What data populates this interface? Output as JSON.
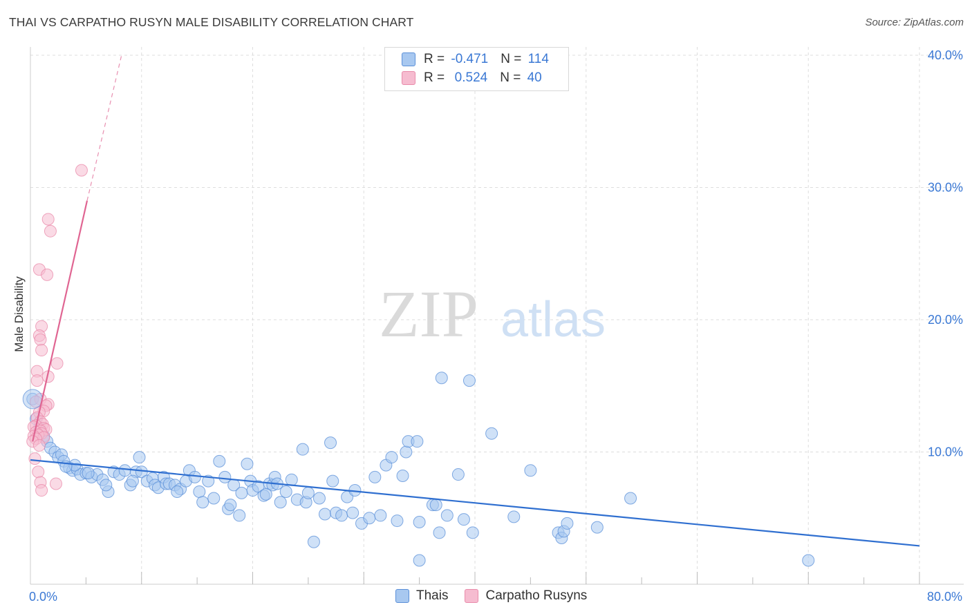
{
  "title": "THAI VS CARPATHO RUSYN MALE DISABILITY CORRELATION CHART",
  "source": "Source: ZipAtlas.com",
  "watermark": {
    "zip": "ZIP",
    "atlas": "atlas"
  },
  "legend": {
    "rows": [
      {
        "r_label": "R = ",
        "r_value": "-0.471",
        "n_label": "N = ",
        "n_value": "114",
        "color": "#a8c8f0",
        "border": "#5a8fd8"
      },
      {
        "r_label": "R = ",
        "r_value": " 0.524",
        "n_label": "N = ",
        "n_value": "40",
        "color": "#f6bcd0",
        "border": "#e98aaa"
      }
    ]
  },
  "bottom_legend": [
    {
      "label": "Thais",
      "color": "#a8c8f0",
      "border": "#5a8fd8"
    },
    {
      "label": "Carpatho Rusyns",
      "color": "#f6bcd0",
      "border": "#e98aaa"
    }
  ],
  "chart_data": {
    "type": "scatter",
    "xlabel": "",
    "ylabel": "Male Disability",
    "xlim": [
      0,
      80
    ],
    "ylim": [
      0,
      40
    ],
    "x_tick_labels": [
      {
        "value": 0,
        "label": "0.0%"
      },
      {
        "value": 80,
        "label": "80.0%"
      }
    ],
    "y_tick_labels": [
      {
        "value": 10,
        "label": "10.0%"
      },
      {
        "value": 20,
        "label": "20.0%"
      },
      {
        "value": 30,
        "label": "30.0%"
      },
      {
        "value": 40,
        "label": "40.0%"
      }
    ],
    "grid": true,
    "series": [
      {
        "name": "Thais",
        "color": "#5a8fd8",
        "fill": "#a8c8f0",
        "trend": {
          "x0": 0,
          "y0": 9.4,
          "x1": 80,
          "y1": 2.9
        },
        "points": [
          [
            0.2,
            14.0
          ],
          [
            0.5,
            12.5
          ],
          [
            0.8,
            11.8
          ],
          [
            1.2,
            11.2
          ],
          [
            1.5,
            10.8
          ],
          [
            1.8,
            10.3
          ],
          [
            2.2,
            10.0
          ],
          [
            2.5,
            9.6
          ],
          [
            2.8,
            9.8
          ],
          [
            3.0,
            9.3
          ],
          [
            3.5,
            8.8
          ],
          [
            3.8,
            8.6
          ],
          [
            4.2,
            8.7
          ],
          [
            4.5,
            8.3
          ],
          [
            5.0,
            8.4
          ],
          [
            5.5,
            8.1
          ],
          [
            6.0,
            8.3
          ],
          [
            6.5,
            7.9
          ],
          [
            7.0,
            7.0
          ],
          [
            7.5,
            8.5
          ],
          [
            8.0,
            8.3
          ],
          [
            8.5,
            8.6
          ],
          [
            9.0,
            7.5
          ],
          [
            9.5,
            8.5
          ],
          [
            9.8,
            9.6
          ],
          [
            10.0,
            8.5
          ],
          [
            10.5,
            7.8
          ],
          [
            11.0,
            8.0
          ],
          [
            11.2,
            7.5
          ],
          [
            11.5,
            7.3
          ],
          [
            12.0,
            8.1
          ],
          [
            12.2,
            7.6
          ],
          [
            12.5,
            7.6
          ],
          [
            13.0,
            7.5
          ],
          [
            13.5,
            7.2
          ],
          [
            14.0,
            7.8
          ],
          [
            14.3,
            8.6
          ],
          [
            14.8,
            8.1
          ],
          [
            15.2,
            7.0
          ],
          [
            15.5,
            6.2
          ],
          [
            16.0,
            7.8
          ],
          [
            16.5,
            6.5
          ],
          [
            17.0,
            9.3
          ],
          [
            17.5,
            8.1
          ],
          [
            17.8,
            5.7
          ],
          [
            18.0,
            6.0
          ],
          [
            18.3,
            7.5
          ],
          [
            18.8,
            5.2
          ],
          [
            19.0,
            6.9
          ],
          [
            19.5,
            9.1
          ],
          [
            19.8,
            7.8
          ],
          [
            20.0,
            7.1
          ],
          [
            20.5,
            7.4
          ],
          [
            21.0,
            6.7
          ],
          [
            21.5,
            7.6
          ],
          [
            21.8,
            7.5
          ],
          [
            22.0,
            8.1
          ],
          [
            22.5,
            6.2
          ],
          [
            23.0,
            7.0
          ],
          [
            23.5,
            7.9
          ],
          [
            24.0,
            6.4
          ],
          [
            24.5,
            10.2
          ],
          [
            24.8,
            6.2
          ],
          [
            25.0,
            6.9
          ],
          [
            25.5,
            3.2
          ],
          [
            26.0,
            6.5
          ],
          [
            26.5,
            5.3
          ],
          [
            27.0,
            10.7
          ],
          [
            27.2,
            7.8
          ],
          [
            27.5,
            5.4
          ],
          [
            28.0,
            5.2
          ],
          [
            28.5,
            6.6
          ],
          [
            29.0,
            5.4
          ],
          [
            29.2,
            7.1
          ],
          [
            29.8,
            4.6
          ],
          [
            30.5,
            5.0
          ],
          [
            31.0,
            8.1
          ],
          [
            31.5,
            5.2
          ],
          [
            32.0,
            9.0
          ],
          [
            32.5,
            9.6
          ],
          [
            33.0,
            4.8
          ],
          [
            33.5,
            8.2
          ],
          [
            33.8,
            10.0
          ],
          [
            34.0,
            10.8
          ],
          [
            34.8,
            10.8
          ],
          [
            35.0,
            4.7
          ],
          [
            36.2,
            6.0
          ],
          [
            36.5,
            6.0
          ],
          [
            36.8,
            3.9
          ],
          [
            37.0,
            15.6
          ],
          [
            37.5,
            5.2
          ],
          [
            38.5,
            8.3
          ],
          [
            39.0,
            4.9
          ],
          [
            39.5,
            15.4
          ],
          [
            39.8,
            3.9
          ],
          [
            41.5,
            11.4
          ],
          [
            43.5,
            5.1
          ],
          [
            45.0,
            8.6
          ],
          [
            47.5,
            3.9
          ],
          [
            47.8,
            3.5
          ],
          [
            48.0,
            4.0
          ],
          [
            48.3,
            4.6
          ],
          [
            51.0,
            4.3
          ],
          [
            54.0,
            6.5
          ],
          [
            70.0,
            1.8
          ],
          [
            35.0,
            1.8
          ],
          [
            21.2,
            6.8
          ],
          [
            22.2,
            7.6
          ],
          [
            13.2,
            7.0
          ],
          [
            9.2,
            7.8
          ],
          [
            6.8,
            7.5
          ],
          [
            5.2,
            8.4
          ],
          [
            4.0,
            9.0
          ],
          [
            3.2,
            8.9
          ]
        ]
      },
      {
        "name": "Carpatho Rusyns",
        "color": "#e98aaa",
        "fill": "#f6bcd0",
        "trend": {
          "x0": 0.2,
          "y0": 10.8,
          "x1": 5.1,
          "y1": 29.0,
          "ext_x1": 8.2,
          "ext_y1": 40.0
        },
        "points": [
          [
            4.6,
            31.3
          ],
          [
            1.6,
            27.6
          ],
          [
            1.8,
            26.7
          ],
          [
            0.8,
            23.8
          ],
          [
            1.5,
            23.4
          ],
          [
            1.0,
            19.5
          ],
          [
            0.8,
            18.8
          ],
          [
            0.9,
            18.5
          ],
          [
            1.0,
            17.7
          ],
          [
            2.4,
            16.7
          ],
          [
            0.6,
            16.1
          ],
          [
            1.6,
            15.7
          ],
          [
            0.6,
            15.4
          ],
          [
            0.9,
            14.0
          ],
          [
            0.5,
            13.8
          ],
          [
            1.6,
            13.6
          ],
          [
            1.4,
            13.5
          ],
          [
            1.2,
            13.1
          ],
          [
            0.8,
            13.0
          ],
          [
            0.6,
            12.6
          ],
          [
            0.9,
            12.3
          ],
          [
            1.1,
            12.1
          ],
          [
            0.5,
            12.0
          ],
          [
            0.3,
            11.9
          ],
          [
            1.2,
            11.8
          ],
          [
            1.4,
            11.7
          ],
          [
            0.9,
            11.6
          ],
          [
            0.5,
            11.5
          ],
          [
            1.0,
            11.4
          ],
          [
            0.7,
            11.3
          ],
          [
            0.3,
            11.2
          ],
          [
            1.2,
            11.1
          ],
          [
            0.5,
            11.0
          ],
          [
            0.2,
            10.8
          ],
          [
            0.8,
            10.5
          ],
          [
            0.4,
            9.5
          ],
          [
            0.7,
            8.5
          ],
          [
            0.9,
            7.7
          ],
          [
            2.3,
            7.6
          ],
          [
            1.0,
            7.1
          ]
        ]
      }
    ]
  }
}
